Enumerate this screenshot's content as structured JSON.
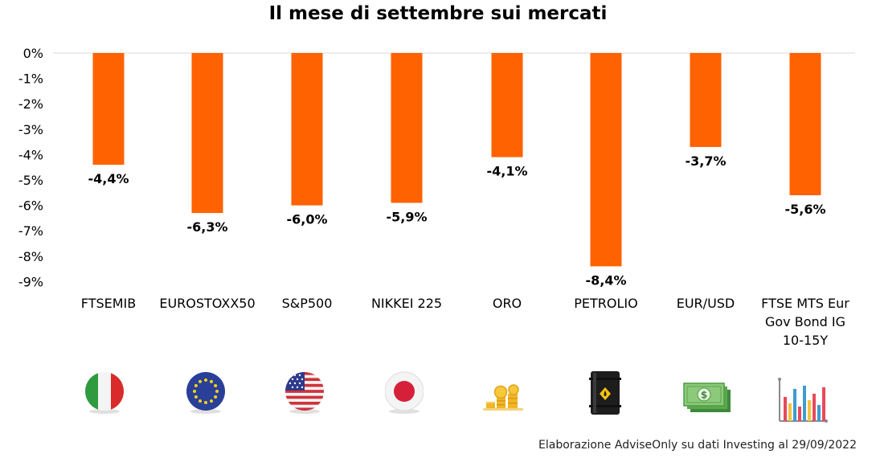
{
  "title": "Il mese di settembre sui mercati",
  "source": "Elaborazione AdviseOnly su dati Investing al 29/09/2022",
  "colors": {
    "bar": "#FF6200",
    "grid": "#d9d9d9",
    "text": "#000000"
  },
  "chart_data": {
    "type": "bar",
    "title": "Il mese di settembre sui mercati",
    "xlabel": "",
    "ylabel": "",
    "ylim": [
      -9,
      0
    ],
    "y_ticks": [
      "0%",
      "-1%",
      "-2%",
      "-3%",
      "-4%",
      "-5%",
      "-6%",
      "-7%",
      "-8%",
      "-9%"
    ],
    "grid": "top line only",
    "legend": "none",
    "categories": [
      [
        "FTSEMIB"
      ],
      [
        "EUROSTOXX50"
      ],
      [
        "S&P500"
      ],
      [
        "NIKKEI 225"
      ],
      [
        "ORO"
      ],
      [
        "PETROLIO"
      ],
      [
        "EUR/USD"
      ],
      [
        "FTSE MTS Eur",
        "Gov Bond IG",
        "10-15Y"
      ]
    ],
    "values": [
      -4.4,
      -6.3,
      -6.0,
      -5.9,
      -4.1,
      -8.4,
      -3.7,
      -5.6
    ],
    "data_labels": [
      "-4,4%",
      "-6,3%",
      "-6,0%",
      "-5,9%",
      "-4,1%",
      "-8,4%",
      "-3,7%",
      "-5,6%"
    ]
  },
  "icons": [
    "italy-flag-icon",
    "eu-flag-icon",
    "us-flag-icon",
    "japan-flag-icon",
    "gold-coins-icon",
    "oil-barrel-icon",
    "dollar-banknotes-icon",
    "bar-chart-icon"
  ]
}
